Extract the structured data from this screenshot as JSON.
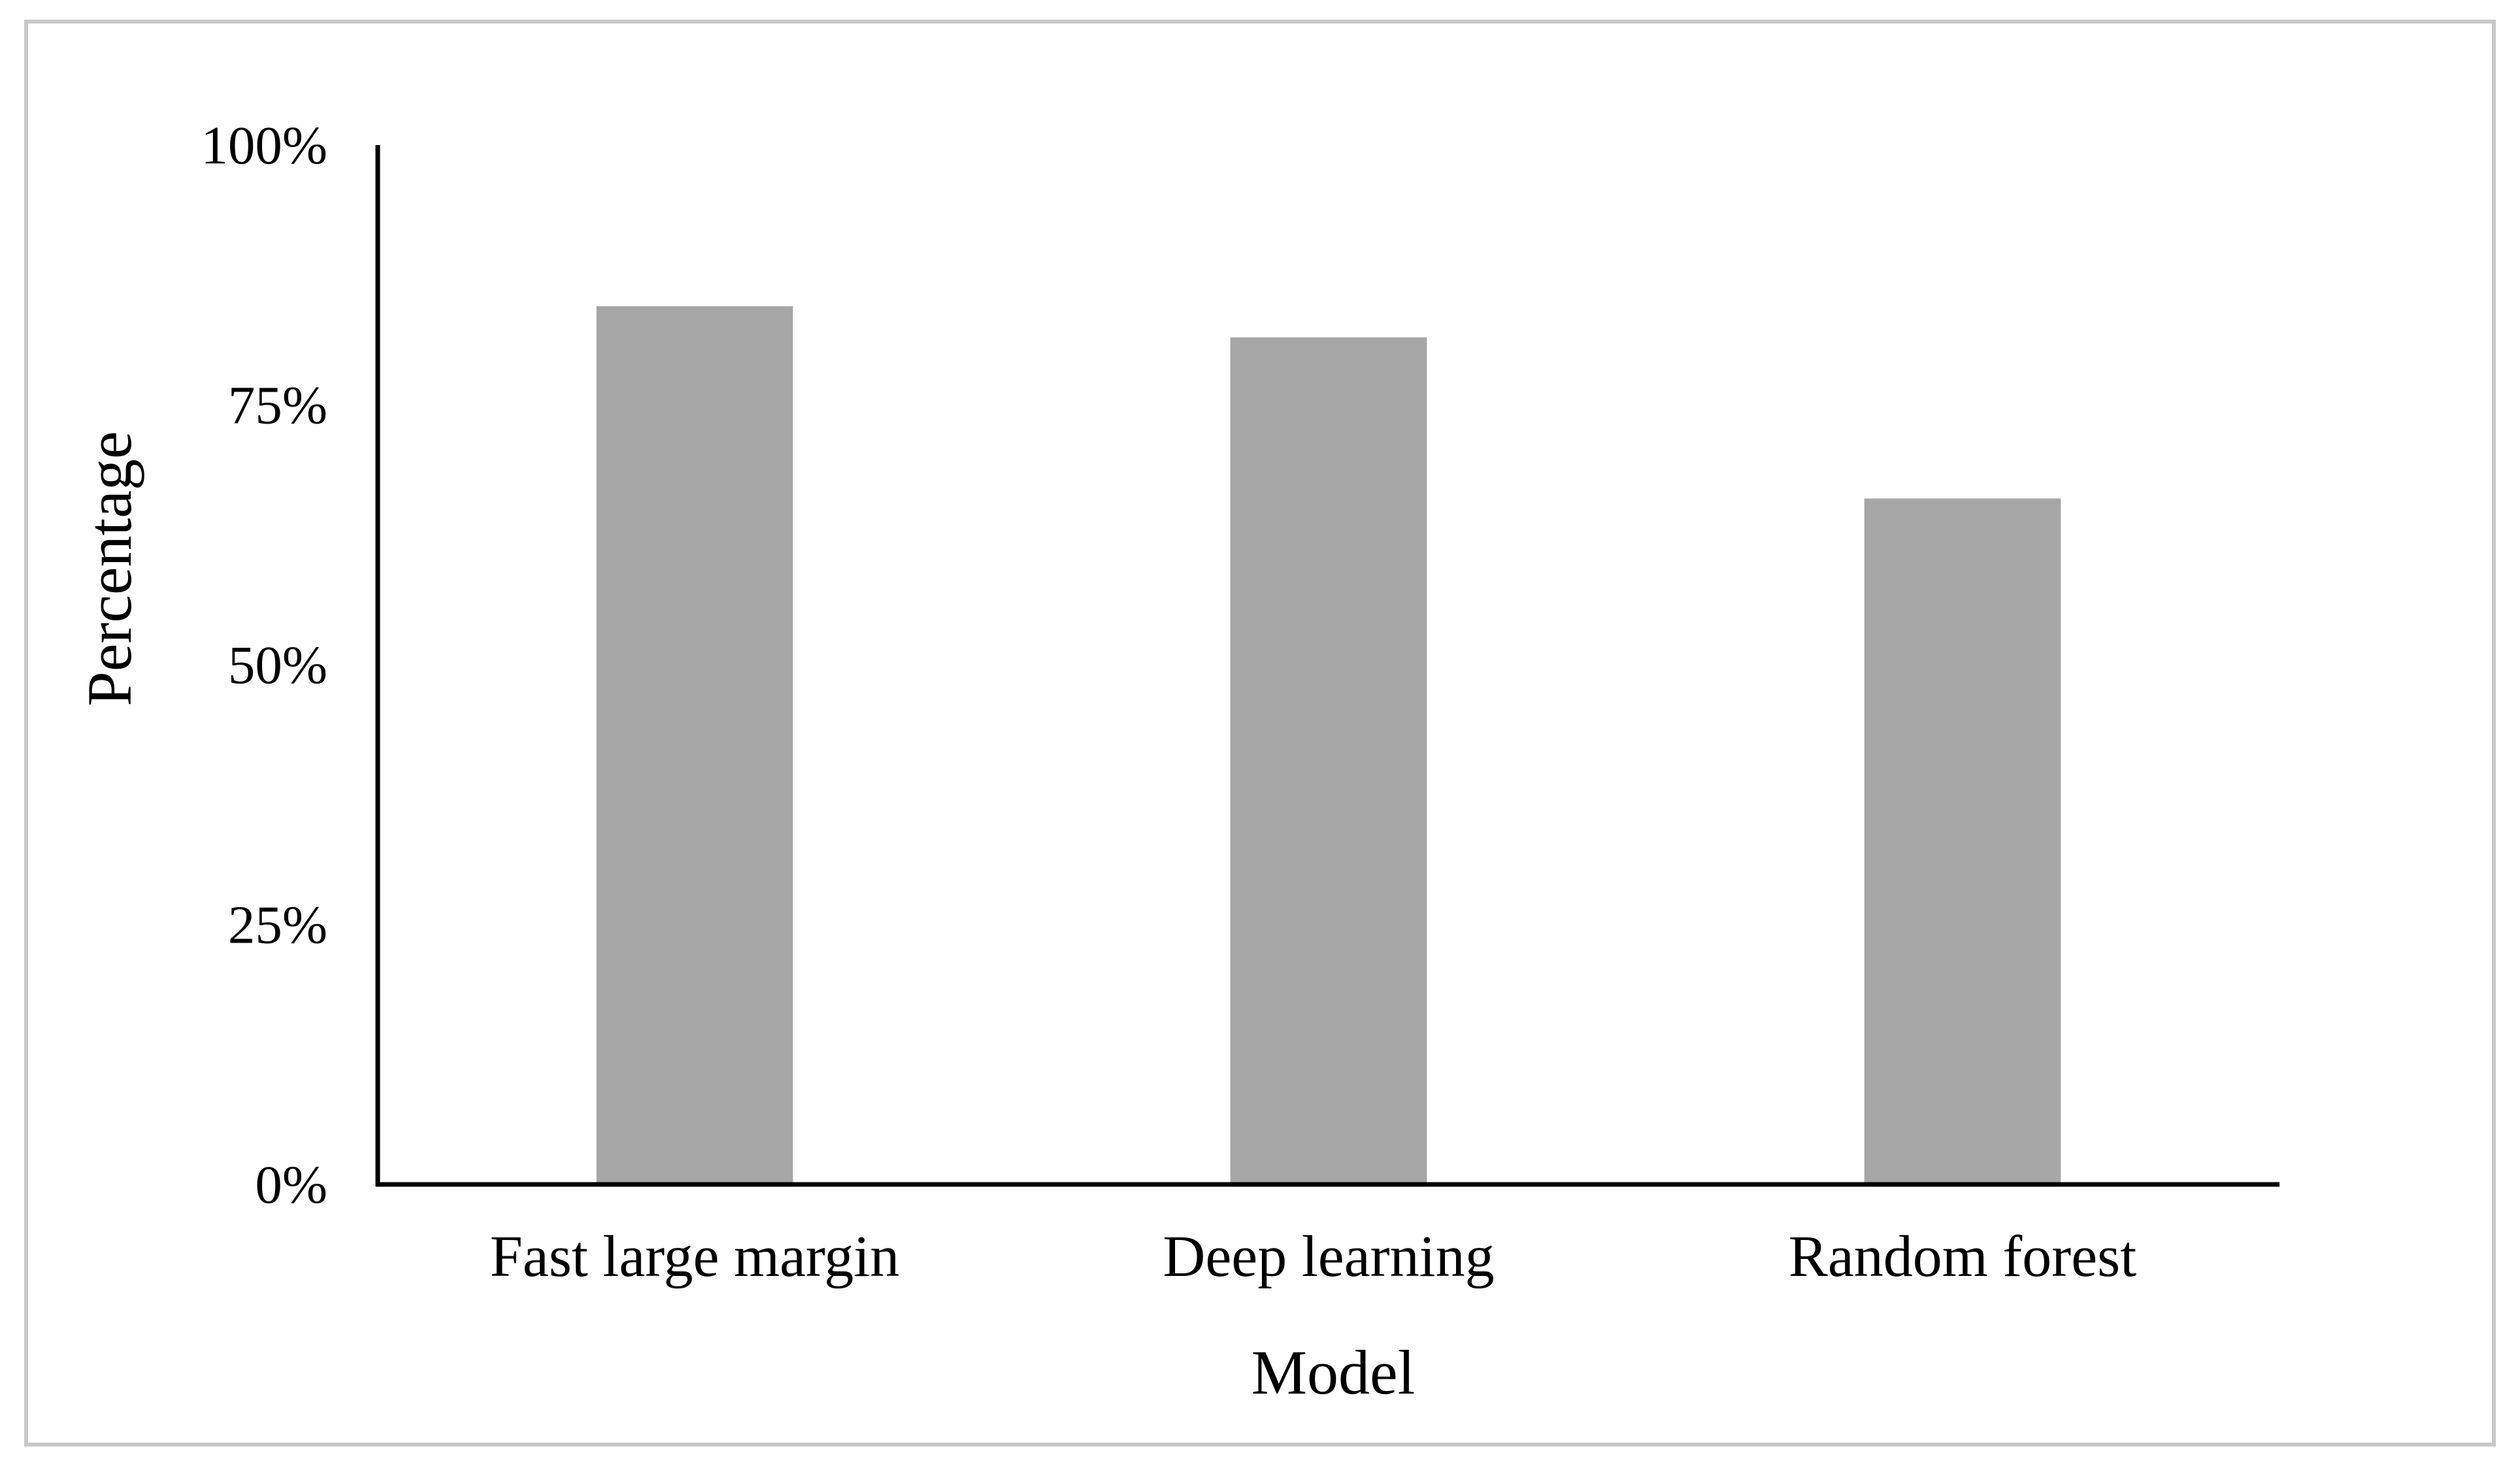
{
  "chart_data": {
    "type": "bar",
    "categories": [
      "Fast large margin",
      "Deep learning",
      "Random forest"
    ],
    "values": [
      84.5,
      81.5,
      66
    ],
    "xlabel": "Model",
    "ylabel": "Percentage",
    "ylim": [
      0,
      100
    ],
    "yticks": [
      "0%",
      "25%",
      "50%",
      "75%",
      "100%"
    ],
    "ytick_values": [
      0,
      25,
      50,
      75,
      100
    ],
    "grid": false,
    "legend": "none",
    "colors": {
      "bar": "#a6a6a6",
      "axis": "#000000",
      "frame": "#c8c8c8"
    }
  }
}
